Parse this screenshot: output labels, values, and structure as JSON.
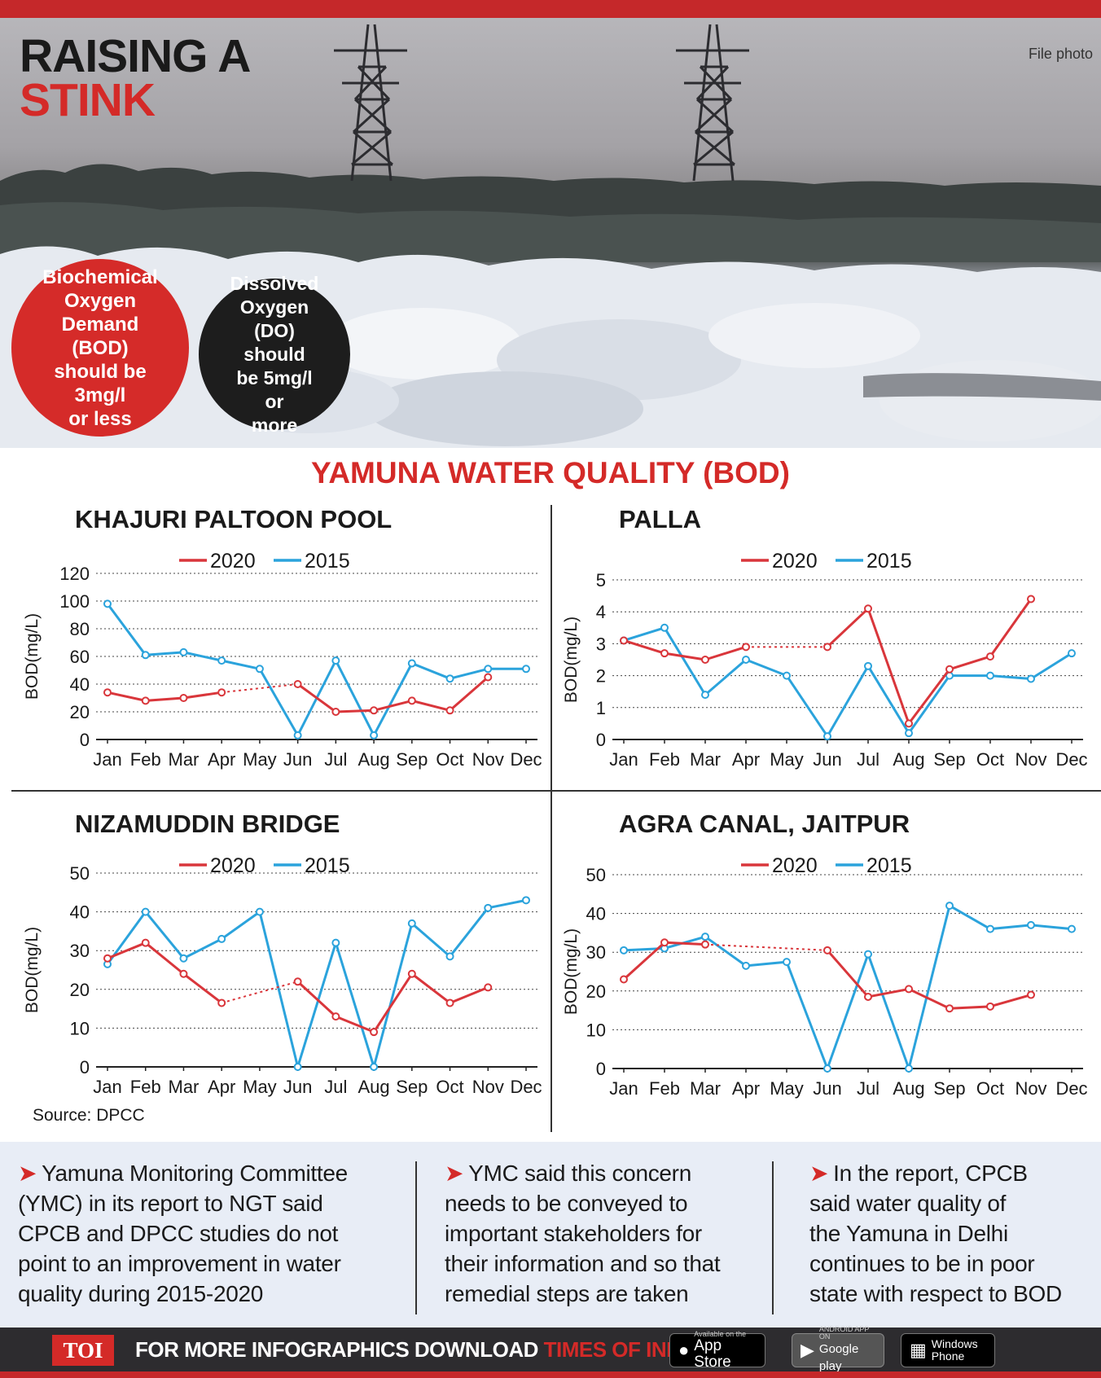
{
  "hero": {
    "title_line1": "RAISING A",
    "title_line2": "STINK",
    "photo_credit": "File photo",
    "bod_badge": [
      "Biochemical",
      "Oxygen",
      "Demand (BOD)",
      "should be 3mg/l",
      "or less"
    ],
    "do_badge": [
      "Dissolved",
      "Oxygen",
      "(DO) should",
      "be 5mg/l or",
      "more"
    ]
  },
  "main_title": "YAMUNA WATER QUALITY (BOD)",
  "colors": {
    "series_2020": "#d9363b",
    "series_2015": "#2ba3dc",
    "accent": "#d42a28"
  },
  "chart_data": [
    {
      "type": "line",
      "title": "KHAJURI PALTOON POOL",
      "ylabel": "BOD(mg/L)",
      "categories": [
        "Jan",
        "Feb",
        "Mar",
        "Apr",
        "May",
        "Jun",
        "Jul",
        "Aug",
        "Sep",
        "Oct",
        "Nov",
        "Dec"
      ],
      "ylim": [
        0,
        120
      ],
      "yticks": [
        0,
        20,
        40,
        60,
        80,
        100,
        120
      ],
      "grid": true,
      "legend_position": "top",
      "series": [
        {
          "name": "2020",
          "color": "#d9363b",
          "values": [
            34,
            28,
            30,
            34,
            null,
            40,
            20,
            21,
            28,
            21,
            45,
            null
          ],
          "dotted_gaps": [
            [
              3,
              5
            ]
          ]
        },
        {
          "name": "2015",
          "color": "#2ba3dc",
          "values": [
            98,
            61,
            63,
            57,
            51,
            3,
            57,
            3,
            55,
            44,
            51,
            51
          ],
          "dotted_gaps": []
        }
      ]
    },
    {
      "type": "line",
      "title": "PALLA",
      "ylabel": "BOD(mg/L)",
      "categories": [
        "Jan",
        "Feb",
        "Mar",
        "Apr",
        "May",
        "Jun",
        "Jul",
        "Aug",
        "Sep",
        "Oct",
        "Nov",
        "Dec"
      ],
      "ylim": [
        0,
        5
      ],
      "yticks": [
        0,
        1,
        2,
        3,
        4,
        5
      ],
      "grid": true,
      "legend_position": "top",
      "series": [
        {
          "name": "2020",
          "color": "#d9363b",
          "values": [
            3.1,
            2.7,
            2.5,
            2.9,
            null,
            2.9,
            4.1,
            0.5,
            2.2,
            2.6,
            4.4,
            null
          ],
          "dotted_gaps": [
            [
              3,
              5
            ]
          ]
        },
        {
          "name": "2015",
          "color": "#2ba3dc",
          "values": [
            3.1,
            3.5,
            1.4,
            2.5,
            2.0,
            0.1,
            2.3,
            0.2,
            2.0,
            2.0,
            1.9,
            2.7
          ],
          "dotted_gaps": []
        }
      ]
    },
    {
      "type": "line",
      "title": "NIZAMUDDIN BRIDGE",
      "ylabel": "BOD(mg/L)",
      "categories": [
        "Jan",
        "Feb",
        "Mar",
        "Apr",
        "May",
        "Jun",
        "Jul",
        "Aug",
        "Sep",
        "Oct",
        "Nov",
        "Dec"
      ],
      "ylim": [
        0,
        50
      ],
      "yticks": [
        0,
        10,
        20,
        30,
        40,
        50
      ],
      "grid": true,
      "legend_position": "top",
      "series": [
        {
          "name": "2020",
          "color": "#d9363b",
          "values": [
            28,
            32,
            24,
            16.5,
            null,
            22,
            13,
            9,
            24,
            16.5,
            20.5,
            null
          ],
          "dotted_gaps": [
            [
              3,
              5
            ]
          ]
        },
        {
          "name": "2015",
          "color": "#2ba3dc",
          "values": [
            26.5,
            40,
            28,
            33,
            40,
            0,
            32,
            0,
            37,
            28.5,
            41,
            43
          ],
          "dotted_gaps": []
        }
      ]
    },
    {
      "type": "line",
      "title": "AGRA CANAL, JAITPUR",
      "ylabel": "BOD(mg/L)",
      "categories": [
        "Jan",
        "Feb",
        "Mar",
        "Apr",
        "May",
        "Jun",
        "Jul",
        "Aug",
        "Sep",
        "Oct",
        "Nov",
        "Dec"
      ],
      "ylim": [
        0,
        50
      ],
      "yticks": [
        0,
        10,
        20,
        30,
        40,
        50
      ],
      "grid": true,
      "legend_position": "top",
      "series": [
        {
          "name": "2020",
          "color": "#d9363b",
          "values": [
            23,
            32.5,
            32,
            null,
            null,
            30.5,
            18.5,
            20.5,
            15.5,
            16,
            19,
            null
          ],
          "dotted_gaps": [
            [
              2,
              5
            ]
          ]
        },
        {
          "name": "2015",
          "color": "#2ba3dc",
          "values": [
            30.5,
            31,
            34,
            26.5,
            27.5,
            0,
            29.5,
            0,
            42,
            36,
            37,
            36
          ],
          "dotted_gaps": []
        }
      ]
    }
  ],
  "source": "Source: DPCC",
  "notes": [
    [
      "Yamuna Monitoring Committee",
      "(YMC) in its report to NGT said",
      "CPCB and DPCC studies do not",
      "point to an improvement in water",
      "quality during 2015-2020"
    ],
    [
      "YMC said this concern",
      "needs to be conveyed to",
      "important stakeholders for",
      "their information and so that",
      "remedial steps are taken"
    ],
    [
      "In the report, CPCB",
      "said water quality of",
      "the Yamuna in Delhi",
      "continues to be in poor",
      "state with respect to BOD"
    ]
  ],
  "footer": {
    "logo": "TOI",
    "promo_text": "FOR MORE  INFOGRAPHICS DOWNLOAD ",
    "promo_app": "TIMES OF INDIA APP",
    "app_store_small": "Available on the",
    "app_store": "App Store",
    "google_play_small": "ANDROID APP ON",
    "google_play": "Google play",
    "windows": "Windows Phone"
  }
}
